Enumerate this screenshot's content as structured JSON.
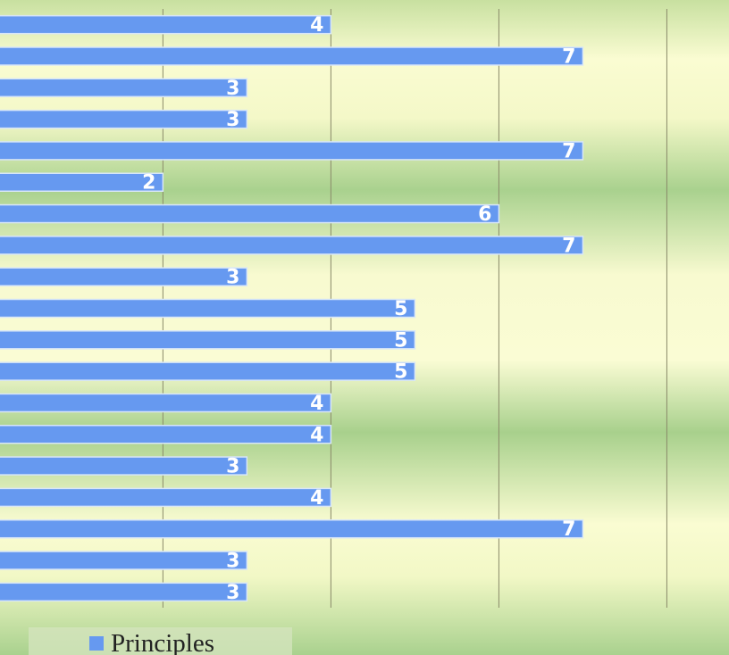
{
  "chart_data": {
    "type": "bar",
    "orientation": "horizontal",
    "categories": [
      null,
      null,
      null,
      null,
      null,
      null,
      null,
      null,
      null,
      null,
      null,
      null,
      null,
      null,
      null,
      null,
      null,
      null,
      null
    ],
    "series": [
      {
        "name": "Principles",
        "color": "#6699f0",
        "values": [
          4,
          7,
          3,
          3,
          7,
          2,
          6,
          7,
          3,
          5,
          5,
          5,
          4,
          4,
          3,
          4,
          7,
          3,
          3
        ]
      }
    ],
    "xlim": [
      0.06,
      8.74
    ],
    "xticks": [
      2,
      4,
      6,
      8
    ],
    "grid": true,
    "legend": "bottom"
  }
}
